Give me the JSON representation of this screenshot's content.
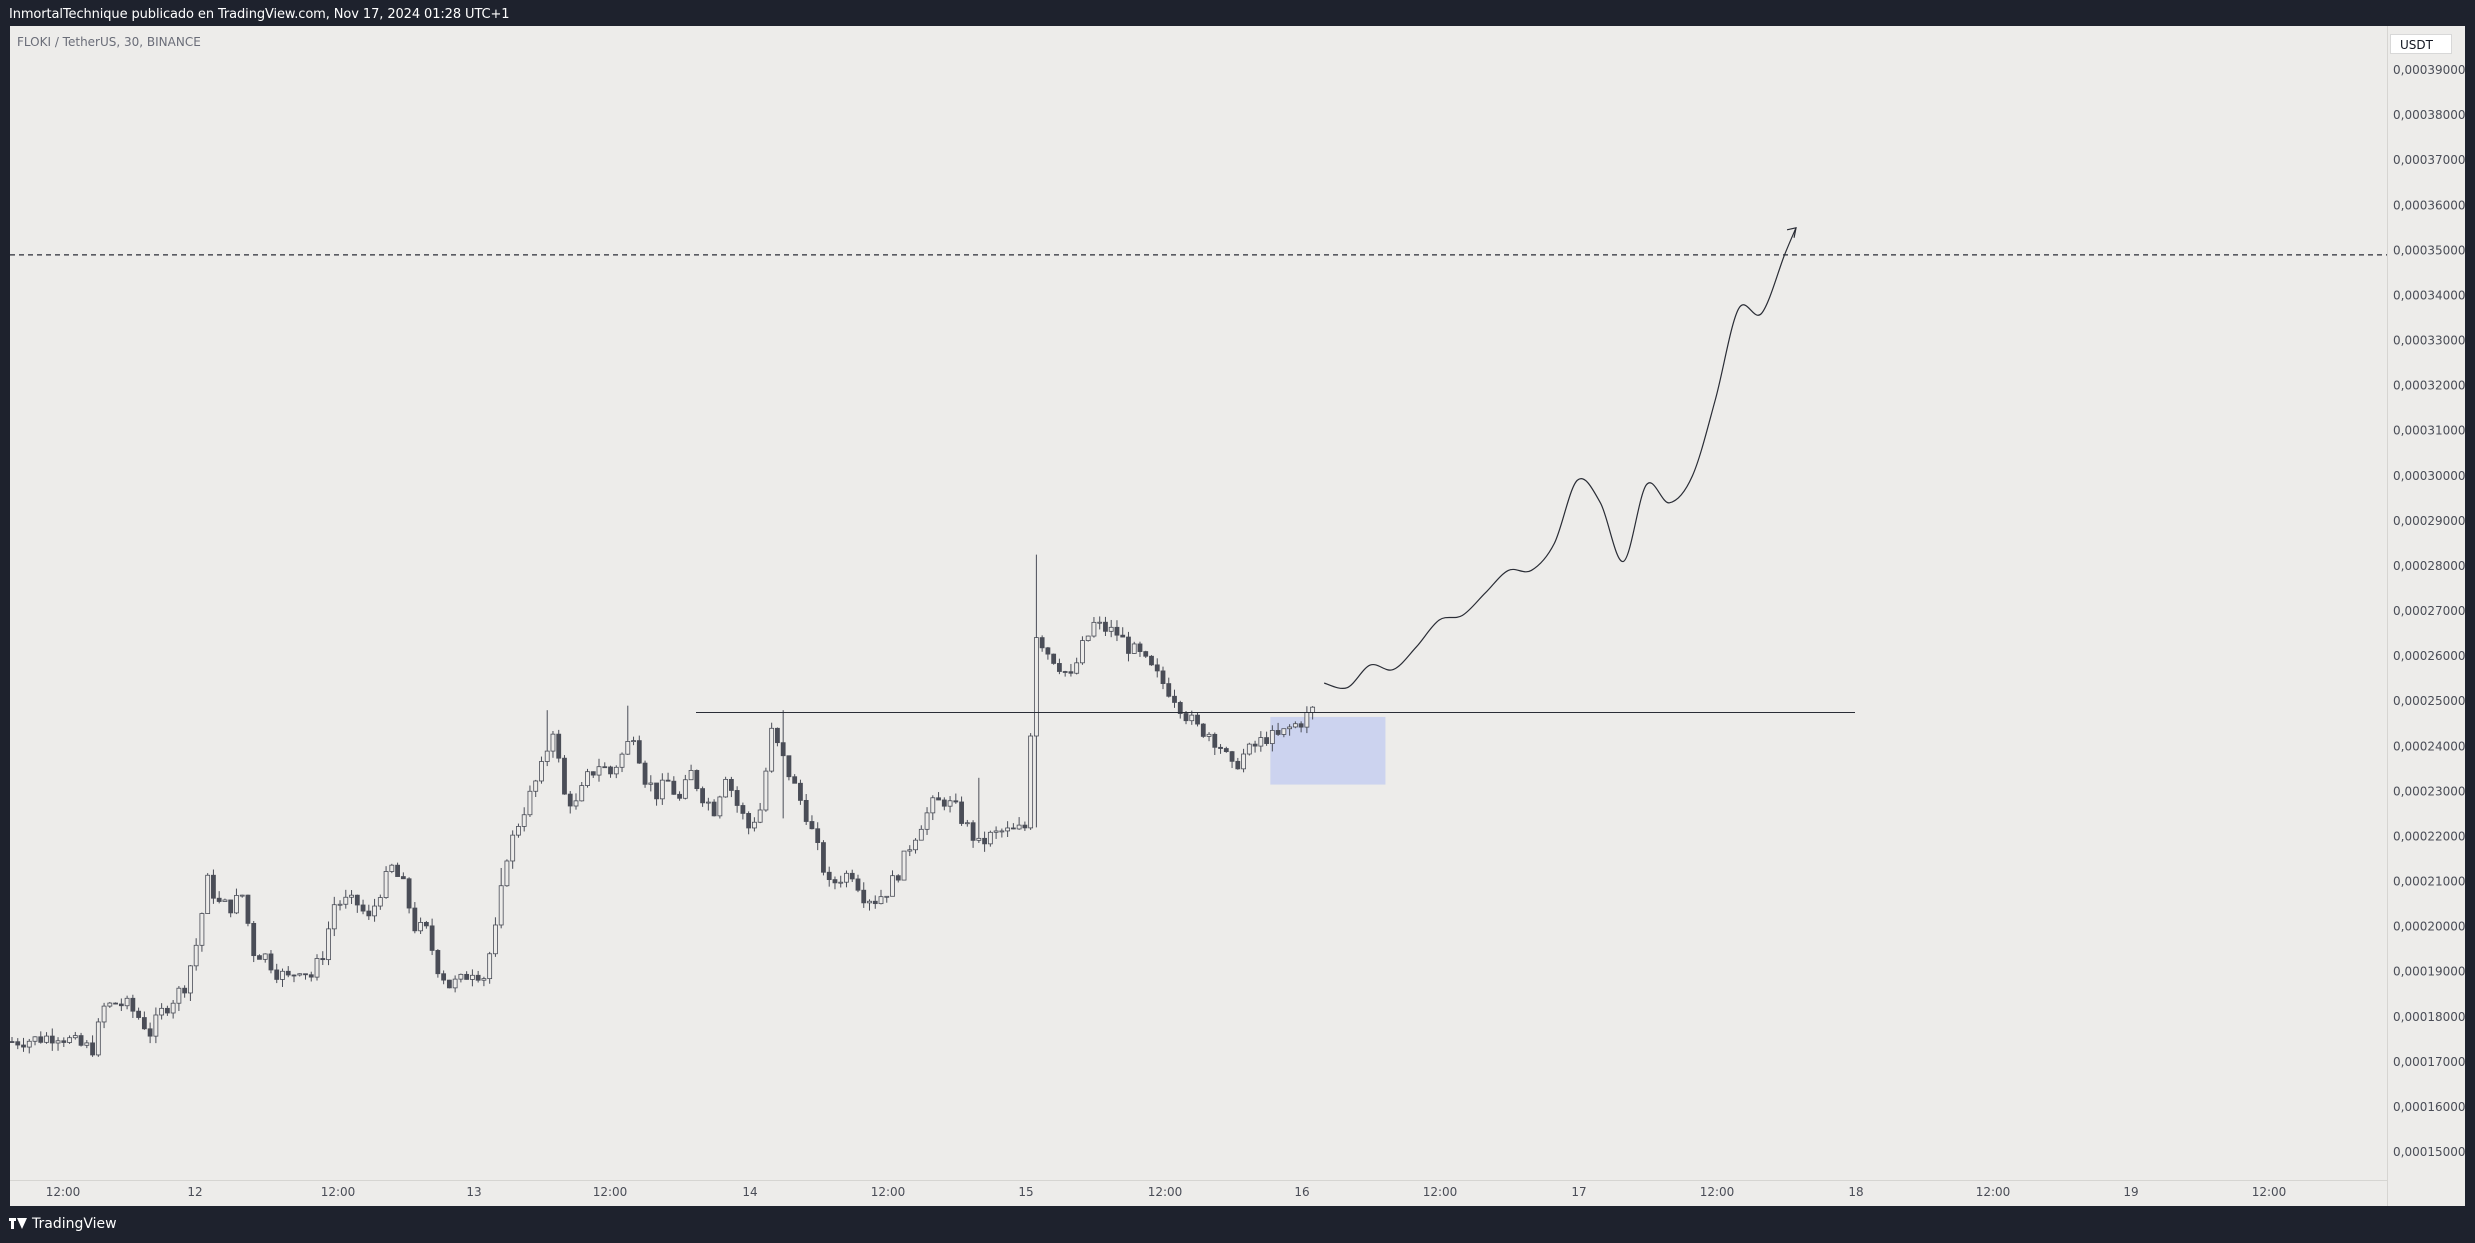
{
  "header": {
    "text": "InmortalTechnique publicado en TradingView.com, Nov 17, 2024 01:28 UTC+1"
  },
  "chart": {
    "symbol_label": "FLOKI / TetherUS, 30, BINANCE",
    "currency": "USDT"
  },
  "footer": {
    "brand": "TradingView",
    "logo_icon": "tradingview-logo-icon"
  },
  "colors": {
    "background": "#1e222d",
    "chart_bg": "#edecea",
    "candle": "#4a4d57",
    "zone": "#c5cff0"
  },
  "chart_data": {
    "type": "candlestick",
    "title": "FLOKI / TetherUS, 30, BINANCE",
    "currency": "USDT",
    "ylim": [
      0.0001445,
      0.000396
    ],
    "y_ticks": [
      "0,00039000",
      "0,00038000",
      "0,00037000",
      "0,00036000",
      "0,00035000",
      "0,00034000",
      "0,00033000",
      "0,00032000",
      "0,00031000",
      "0,00030000",
      "0,00029000",
      "0,00028000",
      "0,00027000",
      "0,00026000",
      "0,00025000",
      "0,00024000",
      "0,00023000",
      "0,00022000",
      "0,00021000",
      "0,00020000",
      "0,00019000",
      "0,00018000",
      "0,00017000",
      "0,00016000",
      "0,00015000"
    ],
    "y_tick_values": [
      0.00039,
      0.00038,
      0.00037,
      0.00036,
      0.00035,
      0.00034,
      0.00033,
      0.00032,
      0.00031,
      0.0003,
      0.00029,
      0.00028,
      0.00027,
      0.00026,
      0.00025,
      0.00024,
      0.00023,
      0.00022,
      0.00021,
      0.0002,
      0.00019,
      0.00018,
      0.00017,
      0.00016,
      0.00015
    ],
    "x_ticks": [
      "12:00",
      "12",
      "12:00",
      "13",
      "12:00",
      "14",
      "12:00",
      "15",
      "12:00",
      "16",
      "12:00",
      "17",
      "12:00",
      "18",
      "12:00",
      "19",
      "12:00"
    ],
    "price_path": [
      [
        0,
        0.0001745
      ],
      [
        4,
        0.000175
      ],
      [
        8,
        0.000176
      ],
      [
        12,
        0.0001735
      ],
      [
        14,
        0.000173
      ],
      [
        16,
        0.000182
      ],
      [
        18,
        0.000183
      ],
      [
        20,
        0.0001825
      ],
      [
        22,
        0.00018
      ],
      [
        24,
        0.0001765
      ],
      [
        26,
        0.000181
      ],
      [
        28,
        0.000184
      ],
      [
        30,
        0.000187
      ],
      [
        32,
        0.000196
      ],
      [
        34,
        0.00021
      ],
      [
        36,
        0.000205
      ],
      [
        38,
        0.0002045
      ],
      [
        40,
        0.000207
      ],
      [
        42,
        0.0001945
      ],
      [
        44,
        0.0001935
      ],
      [
        46,
        0.00019
      ],
      [
        48,
        0.0001885
      ],
      [
        50,
        0.000191
      ],
      [
        52,
        0.000189
      ],
      [
        54,
        0.000194
      ],
      [
        56,
        0.000205
      ],
      [
        58,
        0.0002055
      ],
      [
        60,
        0.000205
      ],
      [
        62,
        0.0002015
      ],
      [
        64,
        0.000208
      ],
      [
        66,
        0.000213
      ],
      [
        68,
        0.000209
      ],
      [
        70,
        0.0002
      ],
      [
        72,
        0.000199
      ],
      [
        74,
        0.000191
      ],
      [
        76,
        0.000187
      ],
      [
        78,
        0.000188
      ],
      [
        80,
        0.0001905
      ],
      [
        82,
        0.000189
      ],
      [
        84,
        0.000199
      ],
      [
        86,
        0.000216
      ],
      [
        88,
        0.000223
      ],
      [
        90,
        0.000229
      ],
      [
        92,
        0.000235
      ],
      [
        94,
        0.000244
      ],
      [
        96,
        0.000229
      ],
      [
        98,
        0.000227
      ],
      [
        100,
        0.000233
      ],
      [
        102,
        0.000236
      ],
      [
        104,
        0.000234
      ],
      [
        106,
        0.000238
      ],
      [
        108,
        0.000243
      ],
      [
        110,
        0.000233
      ],
      [
        112,
        0.0002295
      ],
      [
        114,
        0.000232
      ],
      [
        116,
        0.000228
      ],
      [
        118,
        0.000234
      ],
      [
        120,
        0.000229
      ],
      [
        122,
        0.000226
      ],
      [
        124,
        0.000234
      ],
      [
        126,
        0.000227
      ],
      [
        128,
        0.000222
      ],
      [
        130,
        0.000226
      ],
      [
        132,
        0.000243
      ],
      [
        134,
        0.000237
      ],
      [
        136,
        0.000231
      ],
      [
        138,
        0.000225
      ],
      [
        140,
        0.000217
      ],
      [
        142,
        0.000209
      ],
      [
        144,
        0.000211
      ],
      [
        146,
        0.000212
      ],
      [
        148,
        0.000207
      ],
      [
        150,
        0.000206
      ],
      [
        152,
        0.000208
      ],
      [
        154,
        0.000212
      ],
      [
        156,
        0.000218
      ],
      [
        158,
        0.000223
      ],
      [
        160,
        0.000227
      ],
      [
        162,
        0.000228
      ],
      [
        164,
        0.000226
      ],
      [
        166,
        0.000222
      ],
      [
        168,
        0.000218
      ],
      [
        170,
        0.00022
      ],
      [
        172,
        0.000221
      ],
      [
        174,
        0.000221
      ],
      [
        176,
        0.000222
      ],
      [
        178,
        0.000265
      ],
      [
        180,
        0.000261
      ],
      [
        182,
        0.000258
      ],
      [
        184,
        0.000255
      ],
      [
        186,
        0.000262
      ],
      [
        188,
        0.000267
      ],
      [
        190,
        0.000266
      ],
      [
        192,
        0.000265
      ],
      [
        194,
        0.000262
      ],
      [
        196,
        0.00026
      ],
      [
        198,
        0.000257
      ],
      [
        200,
        0.000254
      ],
      [
        202,
        0.000251
      ],
      [
        204,
        0.000247
      ],
      [
        206,
        0.000244
      ],
      [
        208,
        0.000243
      ],
      [
        210,
        0.00024
      ],
      [
        212,
        0.000235
      ],
      [
        214,
        0.000238
      ],
      [
        216,
        0.00024
      ],
      [
        218,
        0.000242
      ],
      [
        220,
        0.000242
      ],
      [
        222,
        0.000244
      ],
      [
        224,
        0.0002455
      ],
      [
        226,
        0.000248
      ]
    ],
    "annotations": {
      "resistance_level": 0.0002475,
      "target_level": 0.000349,
      "demand_zone": {
        "top": 0.0002465,
        "bottom": 0.0002315
      },
      "projection_path": [
        [
          228,
          0.000254
        ],
        [
          232,
          0.000253
        ],
        [
          236,
          0.000258
        ],
        [
          240,
          0.000257
        ],
        [
          244,
          0.000262
        ],
        [
          248,
          0.000268
        ],
        [
          252,
          0.000269
        ],
        [
          256,
          0.000274
        ],
        [
          260,
          0.000279
        ],
        [
          264,
          0.000279
        ],
        [
          268,
          0.000285
        ],
        [
          272,
          0.000299
        ],
        [
          276,
          0.000294
        ],
        [
          280,
          0.000281
        ],
        [
          284,
          0.000298
        ],
        [
          288,
          0.000294
        ],
        [
          292,
          0.0003
        ],
        [
          296,
          0.000317
        ],
        [
          300,
          0.000337
        ],
        [
          304,
          0.000336
        ],
        [
          308,
          0.000349
        ],
        [
          310,
          0.000355
        ]
      ]
    }
  }
}
